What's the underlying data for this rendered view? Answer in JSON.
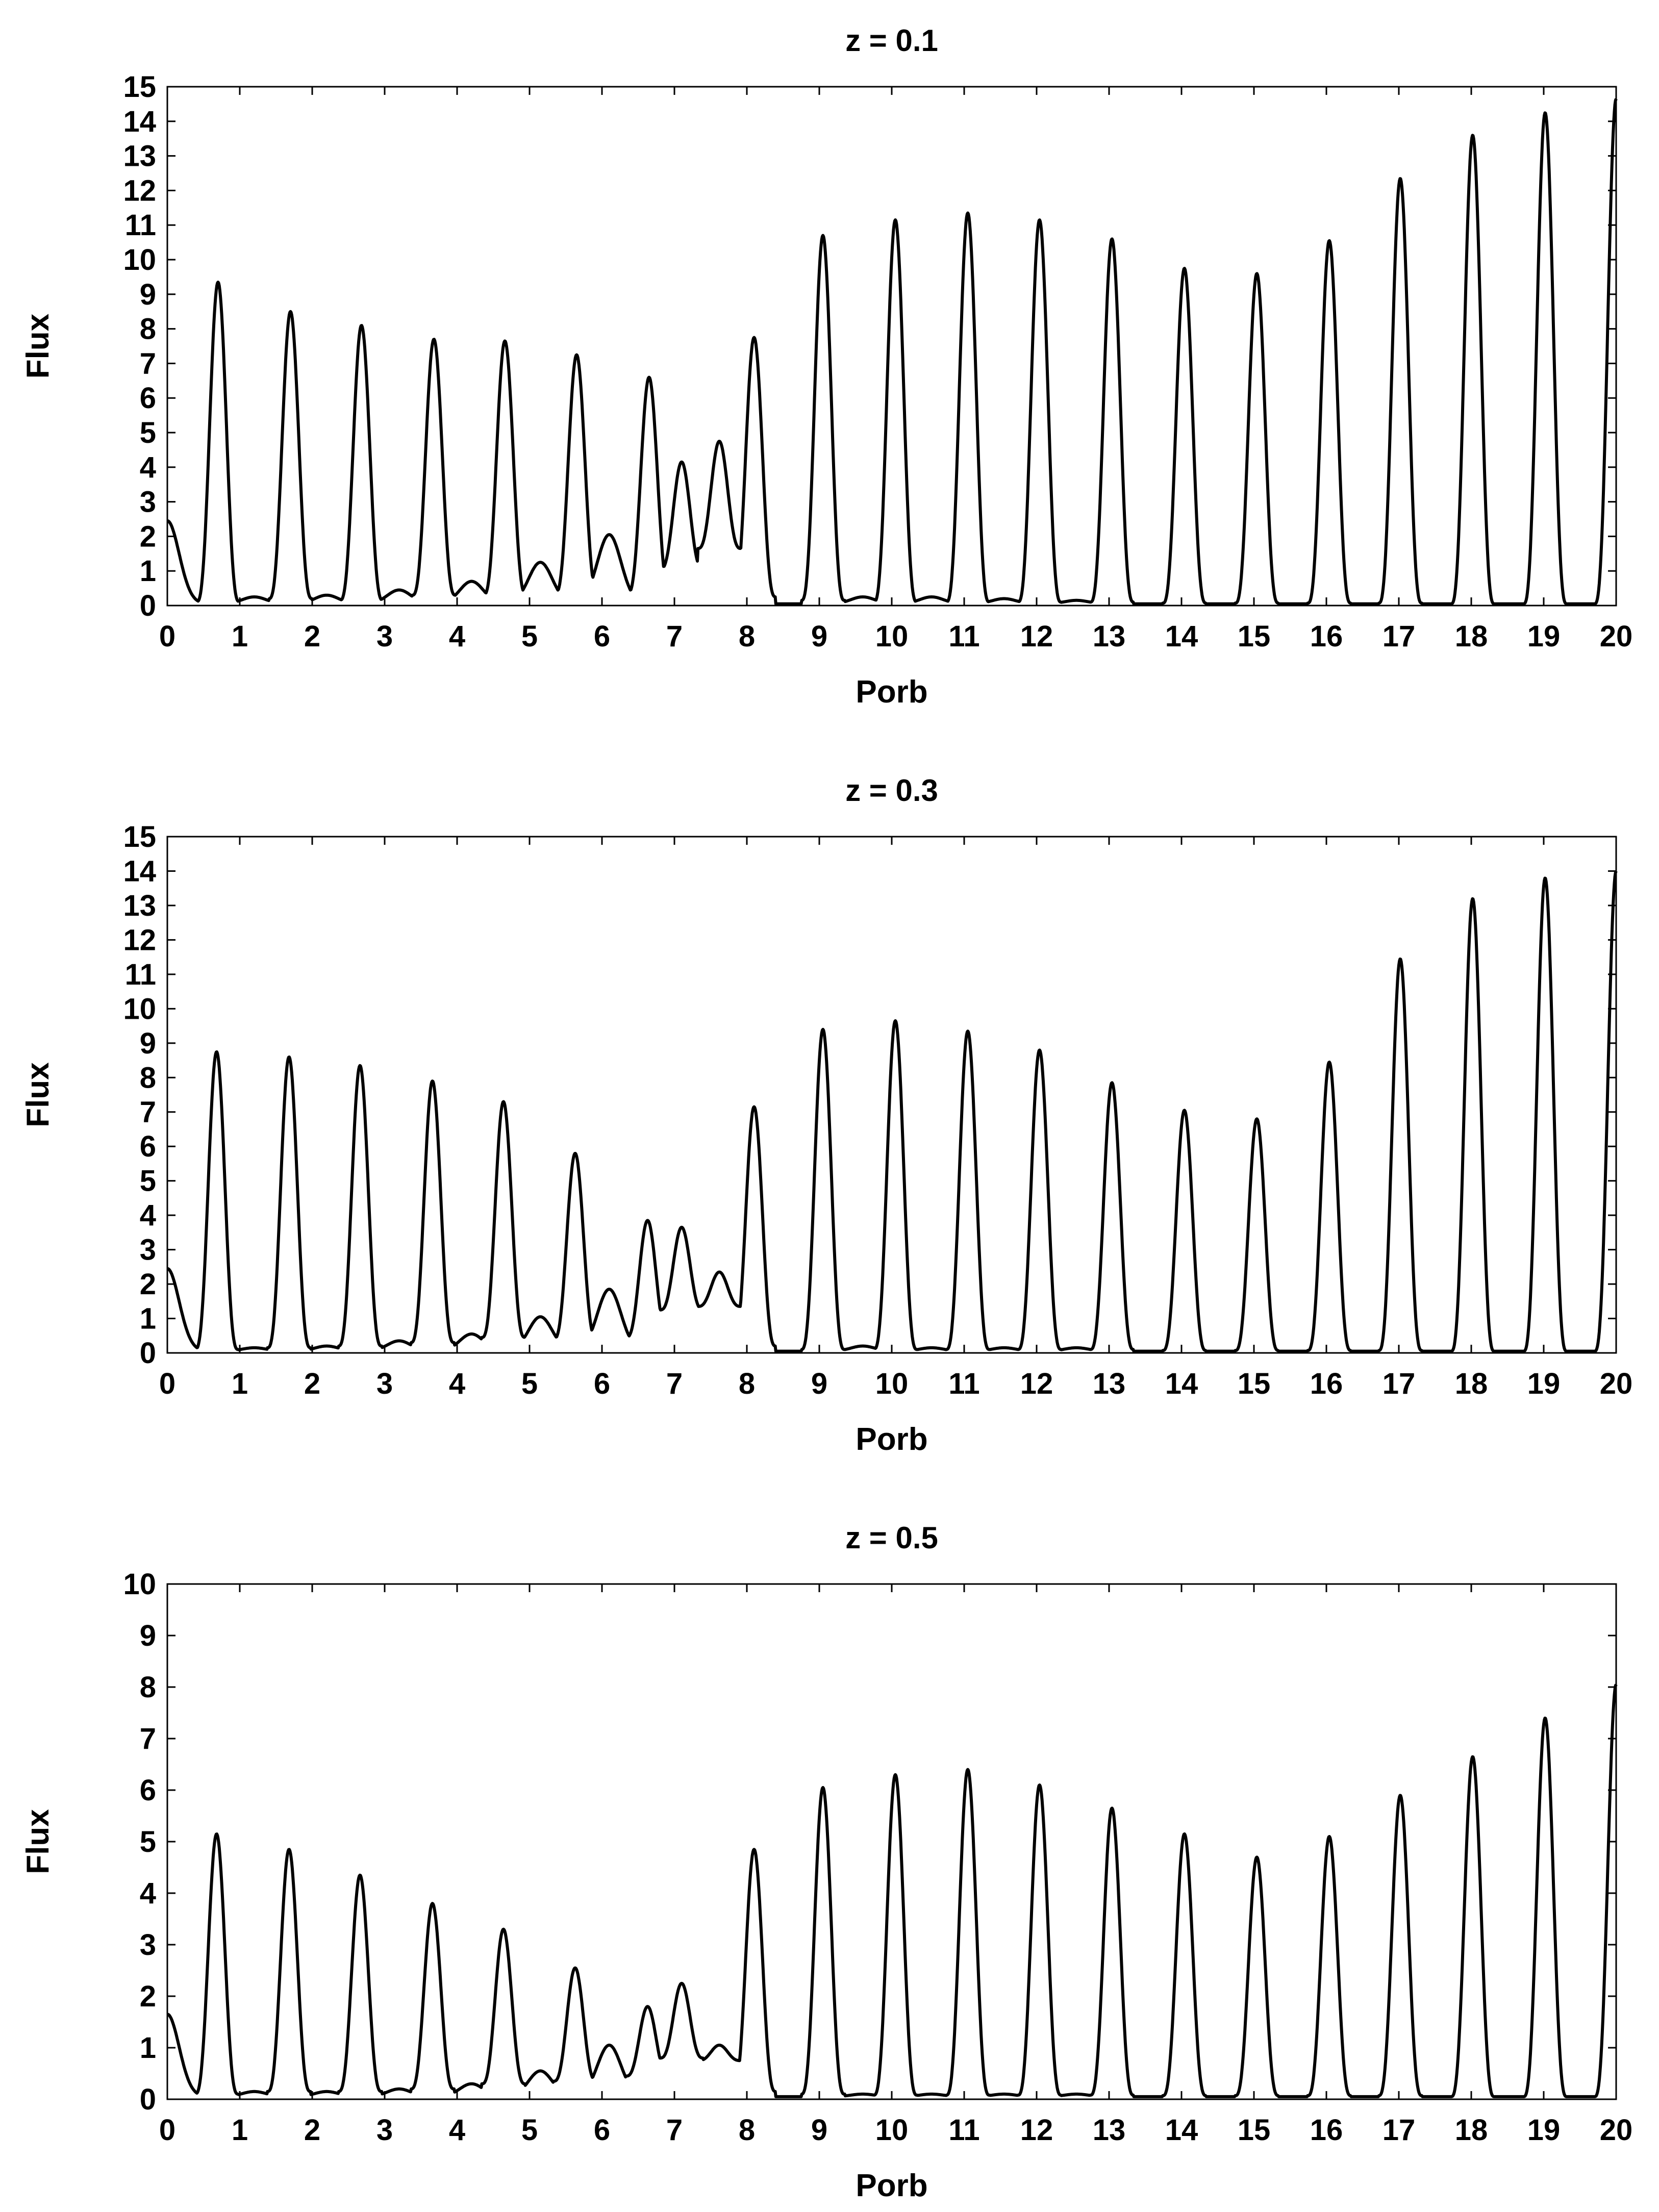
{
  "figure_name": "flux-vs-porb-panels",
  "chart_data": [
    {
      "type": "line",
      "title": "z = 0.1",
      "xlabel": "Porb",
      "ylabel": "Flux",
      "xlim": [
        0,
        20
      ],
      "ylim": [
        0,
        15
      ],
      "xticks": [
        0,
        1,
        2,
        3,
        4,
        5,
        6,
        7,
        8,
        9,
        10,
        11,
        12,
        13,
        14,
        15,
        16,
        17,
        18,
        19,
        20
      ],
      "yticks": [
        0,
        1,
        2,
        3,
        4,
        5,
        6,
        7,
        8,
        9,
        10,
        11,
        12,
        13,
        14,
        15
      ],
      "series": [
        {
          "name": "flux",
          "color": "#000000",
          "peaks": [
            [
              0.7,
              9.3,
              0.05
            ],
            [
              1.7,
              8.45,
              0.15
            ],
            [
              2.68,
              8.05,
              0.1
            ],
            [
              3.68,
              7.65,
              0.25
            ],
            [
              4.66,
              7.6,
              0.25
            ],
            [
              5.65,
              7.2,
              0.3
            ],
            [
              6.65,
              6.55,
              0.3
            ],
            [
              7.1,
              4.1,
              1.0
            ],
            [
              7.62,
              4.7,
              1.6
            ],
            [
              8.1,
              7.7,
              0.2
            ],
            [
              9.05,
              10.65,
              0.1
            ],
            [
              10.05,
              11.1,
              0.05
            ],
            [
              11.05,
              11.3,
              0.05
            ],
            [
              12.04,
              11.1,
              0.05
            ],
            [
              13.04,
              10.55,
              0.05
            ],
            [
              14.04,
              9.7,
              0.02
            ],
            [
              15.04,
              9.55,
              0.02
            ],
            [
              16.04,
              10.5,
              0.02
            ],
            [
              17.02,
              12.3,
              0.02
            ],
            [
              18.02,
              13.55,
              0.0
            ],
            [
              19.02,
              14.2,
              0.0
            ],
            [
              20.0,
              14.6,
              0.0
            ]
          ],
          "troughs": [
            [
              0.0,
              2.4
            ],
            [
              1.2,
              0.2
            ],
            [
              2.2,
              0.25
            ],
            [
              3.2,
              0.4
            ],
            [
              4.2,
              0.65
            ],
            [
              5.15,
              1.2
            ],
            [
              6.1,
              2.0
            ],
            [
              9.6,
              0.2
            ],
            [
              10.55,
              0.2
            ],
            [
              11.55,
              0.15
            ],
            [
              12.55,
              0.1
            ]
          ]
        }
      ]
    },
    {
      "type": "line",
      "title": "z = 0.3",
      "xlabel": "Porb",
      "ylabel": "Flux",
      "xlim": [
        0,
        20
      ],
      "ylim": [
        0,
        15
      ],
      "xticks": [
        0,
        1,
        2,
        3,
        4,
        5,
        6,
        7,
        8,
        9,
        10,
        11,
        12,
        13,
        14,
        15,
        16,
        17,
        18,
        19,
        20
      ],
      "yticks": [
        0,
        1,
        2,
        3,
        4,
        5,
        6,
        7,
        8,
        9,
        10,
        11,
        12,
        13,
        14,
        15
      ],
      "series": [
        {
          "name": "flux",
          "color": "#000000",
          "peaks": [
            [
              0.68,
              8.7,
              0.05
            ],
            [
              1.68,
              8.55,
              0.1
            ],
            [
              2.66,
              8.3,
              0.15
            ],
            [
              3.66,
              7.85,
              0.25
            ],
            [
              4.64,
              7.25,
              0.4
            ],
            [
              5.63,
              5.75,
              0.35
            ],
            [
              6.63,
              3.8,
              0.4
            ],
            [
              7.1,
              3.6,
              1.2
            ],
            [
              7.62,
              2.3,
              1.3
            ],
            [
              8.1,
              7.1,
              0.15
            ],
            [
              9.05,
              9.35,
              0.05
            ],
            [
              10.05,
              9.6,
              0.05
            ],
            [
              11.05,
              9.3,
              0.05
            ],
            [
              12.04,
              8.75,
              0.05
            ],
            [
              13.04,
              7.8,
              0.05
            ],
            [
              14.04,
              7.0,
              0.02
            ],
            [
              15.04,
              6.75,
              0.02
            ],
            [
              16.04,
              8.4,
              0.02
            ],
            [
              17.02,
              11.4,
              0.02
            ],
            [
              18.02,
              13.15,
              0.0
            ],
            [
              19.02,
              13.75,
              0.0
            ],
            [
              20.0,
              13.95,
              0.0
            ]
          ],
          "troughs": [
            [
              0.0,
              2.4
            ],
            [
              1.2,
              0.1
            ],
            [
              2.2,
              0.15
            ],
            [
              3.2,
              0.3
            ],
            [
              4.2,
              0.5
            ],
            [
              5.15,
              1.0
            ],
            [
              6.1,
              1.8
            ],
            [
              9.6,
              0.15
            ],
            [
              10.55,
              0.1
            ],
            [
              11.55,
              0.1
            ],
            [
              12.55,
              0.1
            ]
          ]
        }
      ]
    },
    {
      "type": "line",
      "title": "z = 0.5",
      "xlabel": "Porb",
      "ylabel": "Flux",
      "xlim": [
        0,
        20
      ],
      "ylim": [
        0,
        10
      ],
      "xticks": [
        0,
        1,
        2,
        3,
        4,
        5,
        6,
        7,
        8,
        9,
        10,
        11,
        12,
        13,
        14,
        15,
        16,
        17,
        18,
        19,
        20
      ],
      "yticks": [
        0,
        1,
        2,
        3,
        4,
        5,
        6,
        7,
        8,
        9,
        10
      ],
      "series": [
        {
          "name": "flux",
          "color": "#000000",
          "peaks": [
            [
              0.68,
              5.1,
              0.05
            ],
            [
              1.68,
              4.8,
              0.1
            ],
            [
              2.66,
              4.3,
              0.1
            ],
            [
              3.66,
              3.75,
              0.15
            ],
            [
              4.64,
              3.25,
              0.25
            ],
            [
              5.63,
              2.5,
              0.3
            ],
            [
              6.63,
              1.75,
              0.4
            ],
            [
              7.1,
              2.2,
              0.75
            ],
            [
              7.62,
              1.0,
              0.7
            ],
            [
              8.1,
              4.8,
              0.1
            ],
            [
              9.05,
              6.0,
              0.05
            ],
            [
              10.05,
              6.25,
              0.03
            ],
            [
              11.05,
              6.35,
              0.03
            ],
            [
              12.04,
              6.05,
              0.03
            ],
            [
              13.04,
              5.6,
              0.03
            ],
            [
              14.04,
              5.1,
              0.02
            ],
            [
              15.04,
              4.65,
              0.02
            ],
            [
              16.04,
              5.05,
              0.02
            ],
            [
              17.02,
              5.85,
              0.02
            ],
            [
              18.02,
              6.6,
              0.0
            ],
            [
              19.02,
              7.35,
              0.0
            ],
            [
              20.0,
              8.0,
              0.0
            ]
          ],
          "troughs": [
            [
              0.0,
              1.6
            ],
            [
              1.2,
              0.1
            ],
            [
              2.2,
              0.1
            ],
            [
              3.2,
              0.15
            ],
            [
              4.2,
              0.25
            ],
            [
              5.15,
              0.5
            ],
            [
              6.1,
              1.0
            ],
            [
              9.6,
              0.05
            ],
            [
              10.55,
              0.05
            ],
            [
              11.55,
              0.05
            ],
            [
              12.55,
              0.05
            ]
          ]
        }
      ]
    }
  ]
}
